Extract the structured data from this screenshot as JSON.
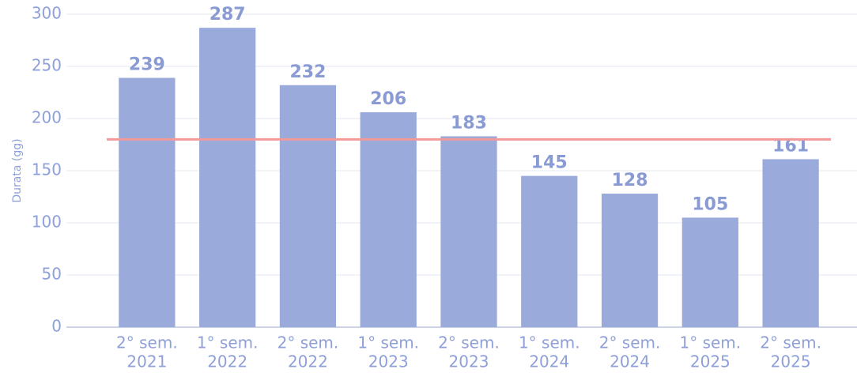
{
  "chart_data": {
    "type": "bar",
    "y_label": "Durata (gg)",
    "categories": [
      [
        "2° sem.",
        "2021"
      ],
      [
        "1° sem.",
        "2022"
      ],
      [
        "2° sem.",
        "2022"
      ],
      [
        "1° sem.",
        "2023"
      ],
      [
        "2° sem.",
        "2023"
      ],
      [
        "1° sem.",
        "2024"
      ],
      [
        "2° sem.",
        "2024"
      ],
      [
        "1° sem.",
        "2025"
      ],
      [
        "2° sem.",
        "2025"
      ]
    ],
    "values": [
      239,
      287,
      232,
      206,
      183,
      145,
      128,
      105,
      161
    ],
    "color": "#99aadb",
    "reference_line": {
      "value": 180,
      "color": "#f29a9a"
    },
    "ylim": [
      0,
      300
    ],
    "yticks": [
      0,
      50,
      100,
      150,
      200,
      250,
      300
    ],
    "grid": true
  }
}
